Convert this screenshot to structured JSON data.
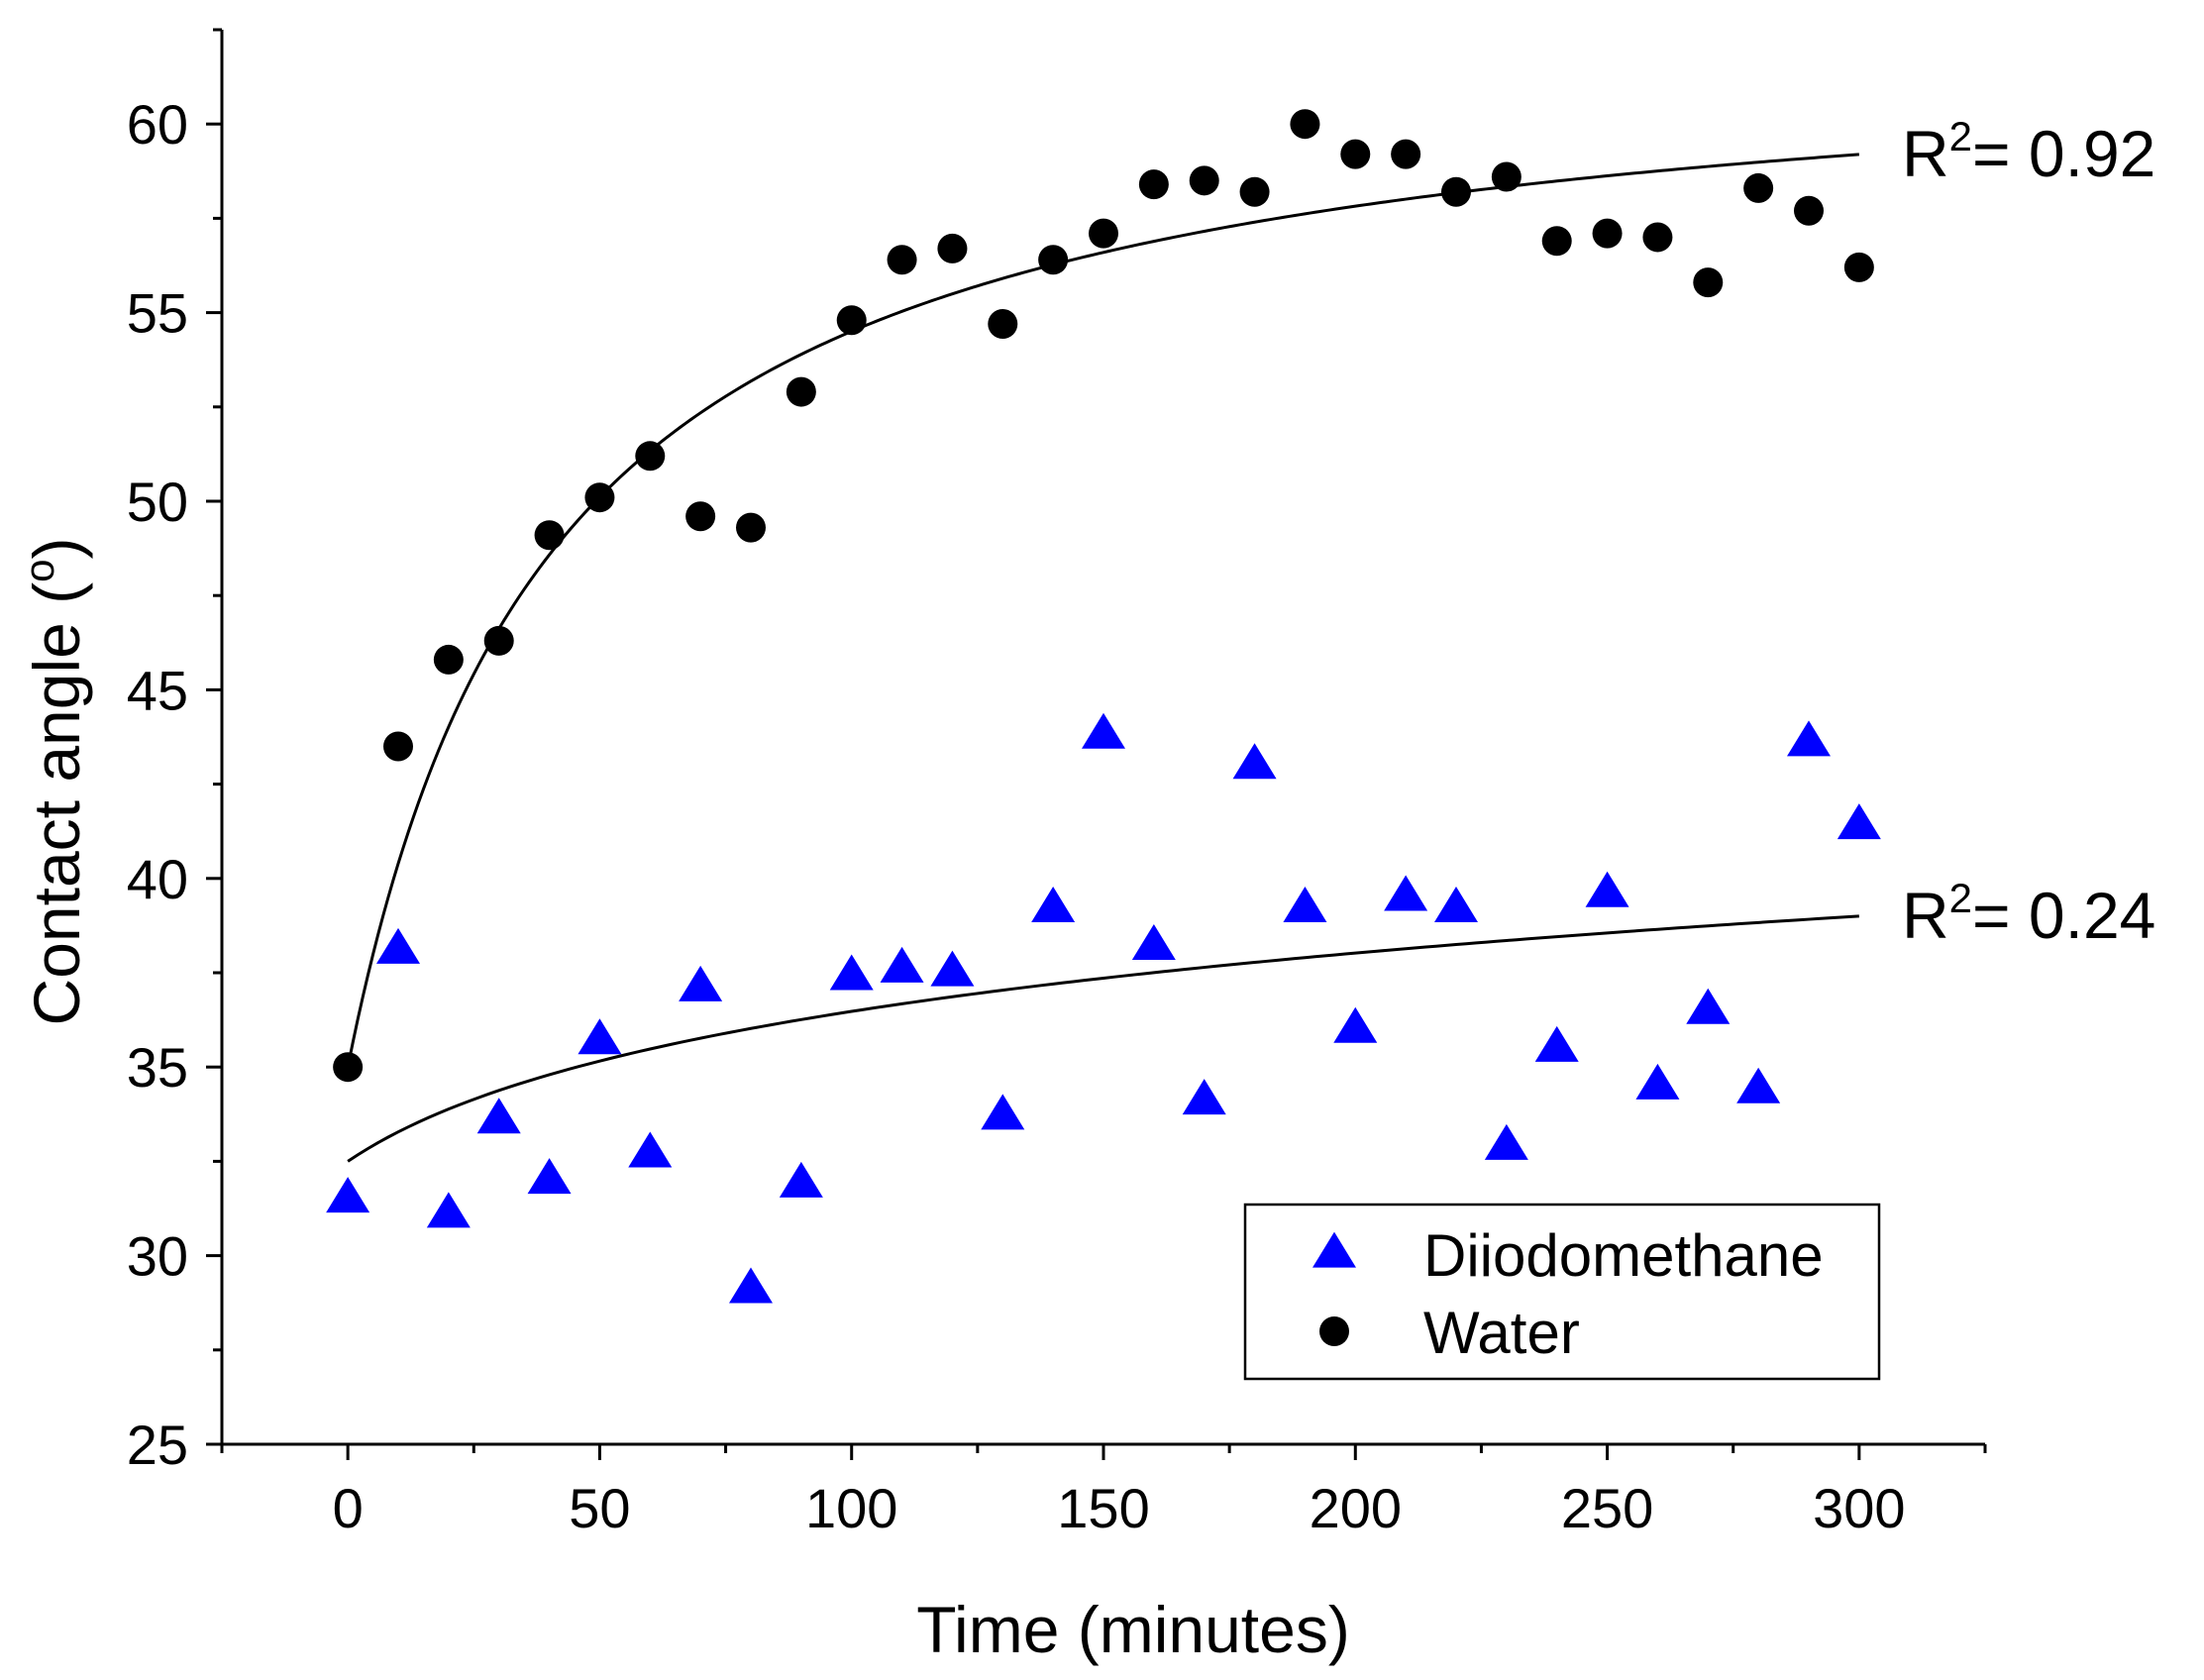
{
  "chart_data": {
    "type": "scatter",
    "xlabel": "Time (minutes)",
    "ylabel": "Contact angle (",
    "ylabel_superscript": "o",
    "ylabel_suffix": ")",
    "xlim": [
      -25,
      325
    ],
    "ylim": [
      25,
      62.5
    ],
    "x_ticks": [
      0,
      50,
      100,
      150,
      200,
      250,
      300
    ],
    "x_tick_labels": [
      "0",
      "50",
      "100",
      "150",
      "200",
      "250",
      "300"
    ],
    "y_ticks": [
      25,
      30,
      35,
      40,
      45,
      50,
      55,
      60
    ],
    "y_tick_labels": [
      "25",
      "30",
      "35",
      "40",
      "45",
      "50",
      "55",
      "60"
    ],
    "grid": false,
    "legend_position": "bottom-right",
    "series": [
      {
        "name": "Diiodomethane",
        "marker": "triangle",
        "color": "#0000ff",
        "x": [
          0,
          10,
          20,
          30,
          40,
          50,
          60,
          70,
          80,
          90,
          100,
          110,
          120,
          130,
          140,
          150,
          160,
          170,
          180,
          190,
          200,
          210,
          220,
          230,
          240,
          250,
          260,
          270,
          280,
          290,
          300
        ],
        "y": [
          31.5,
          38.1,
          31.1,
          33.6,
          32.0,
          35.7,
          32.7,
          37.1,
          29.1,
          31.9,
          37.4,
          37.6,
          37.5,
          33.7,
          39.2,
          43.8,
          38.2,
          34.1,
          43.0,
          39.2,
          36.0,
          39.5,
          39.2,
          32.9,
          35.5,
          39.6,
          34.5,
          36.5,
          34.4,
          43.6,
          41.4
        ],
        "fit": {
          "a": 32.5,
          "b": 6.5,
          "c": 30
        },
        "r2_prefix": "R",
        "r2_sup": "2",
        "r2_value": "= 0.24"
      },
      {
        "name": "Water",
        "marker": "circle",
        "color": "#000000",
        "x": [
          0,
          10,
          20,
          30,
          40,
          50,
          60,
          70,
          80,
          90,
          100,
          110,
          120,
          130,
          140,
          150,
          160,
          170,
          180,
          190,
          200,
          210,
          220,
          230,
          240,
          250,
          260,
          270,
          280,
          290,
          300
        ],
        "y": [
          35.0,
          43.5,
          45.8,
          46.3,
          49.1,
          50.1,
          51.2,
          49.6,
          49.3,
          52.9,
          54.8,
          56.4,
          56.7,
          54.7,
          56.4,
          57.1,
          58.4,
          58.5,
          58.2,
          60.0,
          59.2,
          59.2,
          58.2,
          58.6,
          56.9,
          57.1,
          57.0,
          55.8,
          58.3,
          57.7,
          56.2
        ]
      }
    ],
    "fit_labels": [
      {
        "series": "Water",
        "prefix": "R",
        "sup": "2",
        "value": "= 0.92"
      },
      {
        "series": "Diiodomethane",
        "prefix": "R",
        "sup": "2",
        "value": "= 0.24"
      }
    ]
  }
}
